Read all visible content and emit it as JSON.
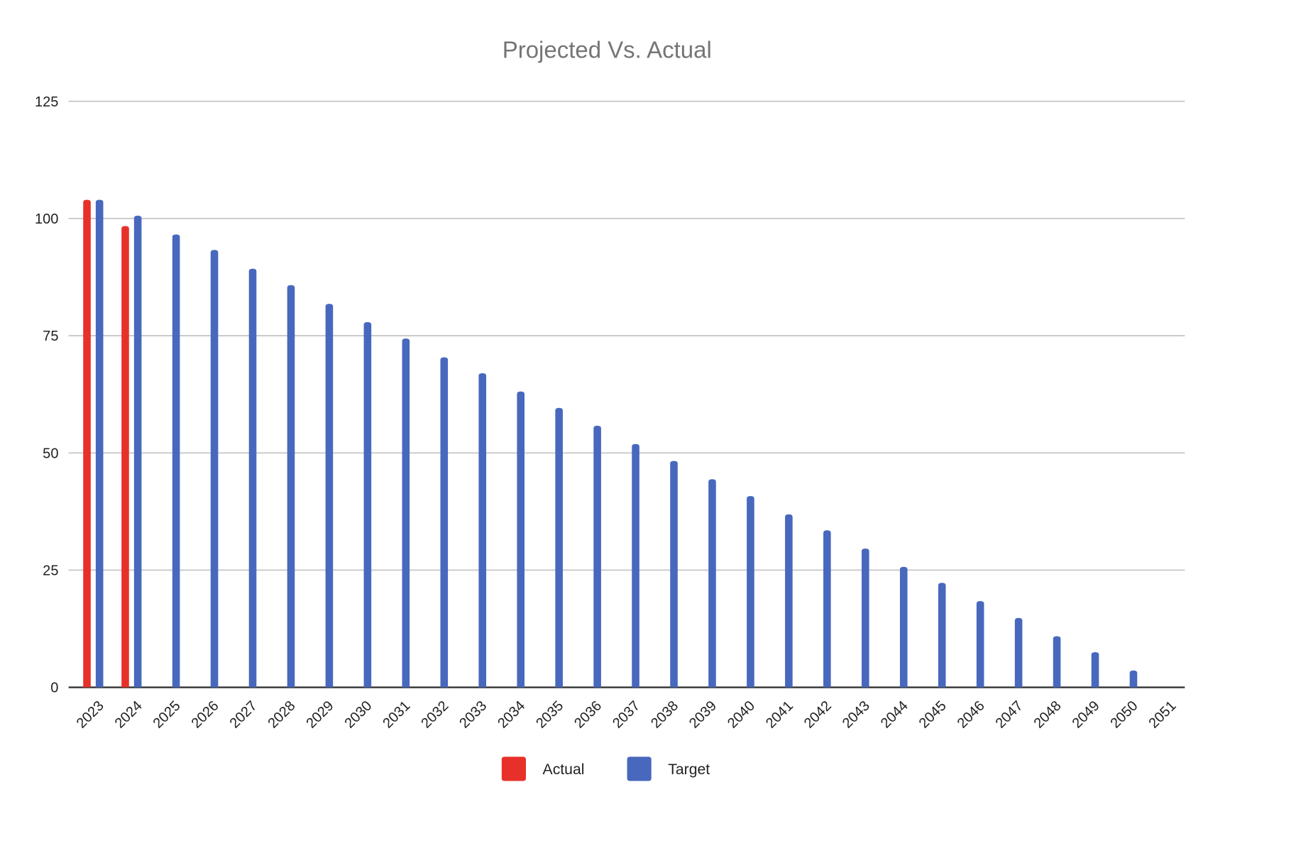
{
  "chart_data": {
    "type": "bar",
    "title": "Projected Vs. Actual",
    "xlabel": "",
    "ylabel": "",
    "ylim": [
      0,
      125
    ],
    "yticks": [
      0,
      25,
      50,
      75,
      100,
      125
    ],
    "grid": true,
    "legend_position": "bottom",
    "categories": [
      "2023",
      "2024",
      "2025",
      "2026",
      "2027",
      "2028",
      "2029",
      "2030",
      "2031",
      "2032",
      "2033",
      "2034",
      "2035",
      "2036",
      "2037",
      "2038",
      "2039",
      "2040",
      "2041",
      "2042",
      "2043",
      "2044",
      "2045",
      "2046",
      "2047",
      "2048",
      "2049",
      "2050",
      "2051"
    ],
    "series": [
      {
        "name": "Actual",
        "color": "#e8302a",
        "values": [
          104,
          98.4,
          null,
          null,
          null,
          null,
          null,
          null,
          null,
          null,
          null,
          null,
          null,
          null,
          null,
          null,
          null,
          null,
          null,
          null,
          null,
          null,
          null,
          null,
          null,
          null,
          null,
          null,
          null
        ]
      },
      {
        "name": "Target",
        "color": "#4868bd",
        "values": [
          104,
          100.6,
          96.6,
          93.3,
          89.3,
          85.8,
          81.8,
          77.9,
          74.4,
          70.4,
          67.0,
          63.1,
          59.6,
          55.8,
          51.9,
          48.3,
          44.4,
          40.8,
          36.9,
          33.5,
          29.6,
          25.7,
          22.3,
          18.4,
          14.8,
          10.9,
          7.5,
          3.6,
          0
        ]
      }
    ]
  }
}
